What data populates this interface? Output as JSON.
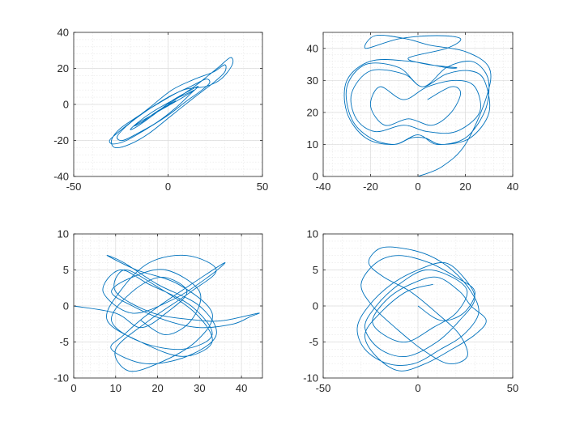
{
  "figure": {
    "background": "#ffffff",
    "axes_color": "#262626",
    "grid_color": "#dcdcdc",
    "line_color": "#0072bd"
  },
  "chart_data": [
    {
      "type": "line",
      "title": "",
      "xlabel": "",
      "ylabel": "",
      "xlim": [
        -50,
        50
      ],
      "ylim": [
        -40,
        40
      ],
      "xticks": [
        -50,
        0,
        50
      ],
      "yticks": [
        -40,
        -20,
        0,
        20,
        40
      ],
      "minor_grid": true,
      "series": [
        {
          "x": [
            0,
            14,
            26,
            33,
            34,
            28,
            20,
            8,
            -6,
            -18,
            -26,
            -30,
            -28,
            -20,
            -10,
            2,
            14,
            24,
            30,
            30,
            24,
            14,
            2,
            -10,
            -20,
            -27,
            -31,
            -29,
            -22,
            -12,
            0,
            10,
            18,
            22,
            20,
            12,
            0,
            -12,
            -22,
            -27,
            -24,
            -16,
            -6,
            4,
            12,
            16,
            12,
            2,
            -8,
            -16,
            -20,
            -16,
            -8,
            2,
            10,
            14,
            8,
            -2,
            -12,
            -18,
            -14,
            -6,
            4
          ],
          "y": [
            0,
            10,
            20,
            26,
            22,
            14,
            10,
            8,
            0,
            -8,
            -14,
            -20,
            -24,
            -22,
            -16,
            -6,
            4,
            12,
            18,
            22,
            18,
            14,
            8,
            -2,
            -10,
            -16,
            -20,
            -22,
            -20,
            -14,
            -6,
            2,
            8,
            12,
            14,
            10,
            4,
            -4,
            -12,
            -18,
            -20,
            -16,
            -10,
            -2,
            6,
            10,
            8,
            2,
            -6,
            -12,
            -14,
            -10,
            -4,
            2,
            6,
            8,
            4,
            -2,
            -8,
            -12,
            -10,
            -4,
            2
          ]
        }
      ]
    },
    {
      "type": "line",
      "title": "",
      "xlabel": "",
      "ylabel": "",
      "xlim": [
        -40,
        40
      ],
      "ylim": [
        0,
        45
      ],
      "xticks": [
        -40,
        -20,
        0,
        20,
        40
      ],
      "yticks": [
        0,
        10,
        20,
        30,
        40
      ],
      "minor_grid": true,
      "series": [
        {
          "x": [
            0,
            10,
            20,
            29,
            30,
            20,
            5,
            -5,
            -18,
            -22,
            -8,
            8,
            18,
            12,
            -4,
            4,
            16,
            12,
            -4,
            -20,
            -30,
            -30,
            -22,
            -10,
            0,
            8,
            20,
            28,
            30,
            28,
            22,
            12,
            2,
            -8,
            -22,
            -30,
            -28,
            -20,
            -10,
            -3,
            3,
            10,
            22,
            30,
            28,
            22,
            12,
            2,
            -6,
            -20,
            -28,
            -26,
            -18,
            -6,
            4,
            16,
            26,
            24,
            16,
            4,
            -6,
            -16,
            -20,
            -14,
            -4,
            6,
            14,
            18,
            14,
            4
          ],
          "y": [
            0,
            3,
            10,
            25,
            34,
            39,
            41,
            43,
            44,
            40,
            43,
            44,
            43,
            40,
            37,
            35,
            34,
            34,
            36,
            36,
            30,
            20,
            12,
            10,
            13,
            10,
            12,
            20,
            28,
            33,
            36,
            34,
            28,
            34,
            35,
            28,
            18,
            12,
            10,
            12,
            12,
            10,
            12,
            20,
            30,
            33,
            32,
            28,
            32,
            33,
            26,
            18,
            14,
            16,
            14,
            14,
            20,
            28,
            30,
            28,
            24,
            28,
            22,
            16,
            18,
            16,
            20,
            26,
            28,
            24
          ]
        }
      ]
    },
    {
      "type": "line",
      "title": "",
      "xlabel": "",
      "ylabel": "",
      "xlim": [
        0,
        45
      ],
      "ylim": [
        -10,
        10
      ],
      "xticks": [
        0,
        10,
        20,
        30,
        40
      ],
      "yticks": [
        -10,
        -5,
        0,
        5,
        10
      ],
      "minor_grid": true,
      "series": [
        {
          "x": [
            0,
            10,
            16,
            22,
            27,
            21,
            14,
            9,
            16,
            26,
            33,
            28,
            18,
            11,
            7,
            14,
            24,
            32,
            36,
            28,
            18,
            12,
            9,
            17,
            27,
            34,
            30,
            20,
            12,
            8,
            15,
            25,
            33,
            29,
            20,
            13,
            10,
            18,
            28,
            34,
            27,
            18,
            11,
            8,
            16,
            26,
            33,
            29,
            19,
            12,
            10,
            19,
            30,
            36,
            44,
            42,
            38,
            30,
            22,
            14,
            9,
            14,
            22,
            30,
            28,
            22,
            16
          ],
          "y": [
            0,
            -1,
            -3,
            -1,
            2,
            4,
            2,
            -2,
            -5,
            -6,
            -4,
            0,
            3,
            5,
            2,
            -1,
            1,
            4,
            6,
            3,
            -1,
            -4,
            -6,
            -8,
            -7,
            -4,
            0,
            3,
            6,
            7,
            5,
            3,
            -1,
            -5,
            -8,
            -9,
            -6,
            -2,
            2,
            5,
            7,
            6,
            2,
            -2,
            -5,
            -7,
            -5,
            -1,
            3,
            5,
            2,
            -1,
            -2,
            -2,
            -1,
            -1.5,
            -2.5,
            -3,
            -2,
            0,
            2,
            4,
            5,
            2,
            -2,
            -4,
            -2
          ]
        }
      ]
    },
    {
      "type": "line",
      "title": "",
      "xlabel": "",
      "ylabel": "",
      "xlim": [
        -50,
        50
      ],
      "ylim": [
        -10,
        10
      ],
      "xticks": [
        -50,
        0,
        50
      ],
      "yticks": [
        -10,
        -5,
        0,
        5,
        10
      ],
      "minor_grid": true,
      "series": [
        {
          "x": [
            0,
            12,
            24,
            30,
            20,
            6,
            -10,
            -22,
            -30,
            -24,
            -12,
            2,
            16,
            26,
            22,
            10,
            -4,
            -18,
            -26,
            -20,
            -8,
            6,
            18,
            28,
            32,
            24,
            12,
            -2,
            -16,
            -28,
            -32,
            -26,
            -14,
            0,
            14,
            24,
            30,
            22,
            10,
            -6,
            -20,
            -28,
            -22,
            -10,
            4,
            18,
            26,
            20,
            8,
            -6,
            -18,
            -24,
            -16,
            -4,
            10,
            22,
            28,
            36,
            30,
            18,
            4,
            -10,
            -22,
            -28,
            -20,
            -6,
            8
          ],
          "y": [
            0,
            -2,
            -1,
            2,
            4,
            6,
            7,
            6,
            3,
            0,
            -3,
            -6,
            -8,
            -7,
            -4,
            -1,
            2,
            4,
            6,
            8,
            8,
            7,
            5,
            2,
            -1,
            -4,
            -6,
            -8,
            -8,
            -6,
            -3,
            0,
            3,
            5,
            6,
            4,
            1,
            -2,
            -5,
            -7,
            -6,
            -3,
            0,
            3,
            5,
            4,
            2,
            -1,
            -3,
            -5,
            -4,
            -2,
            1,
            3,
            4,
            2,
            0,
            -2,
            -4,
            -6,
            -8,
            -9,
            -7,
            -4,
            -1,
            2,
            3
          ]
        }
      ]
    }
  ]
}
